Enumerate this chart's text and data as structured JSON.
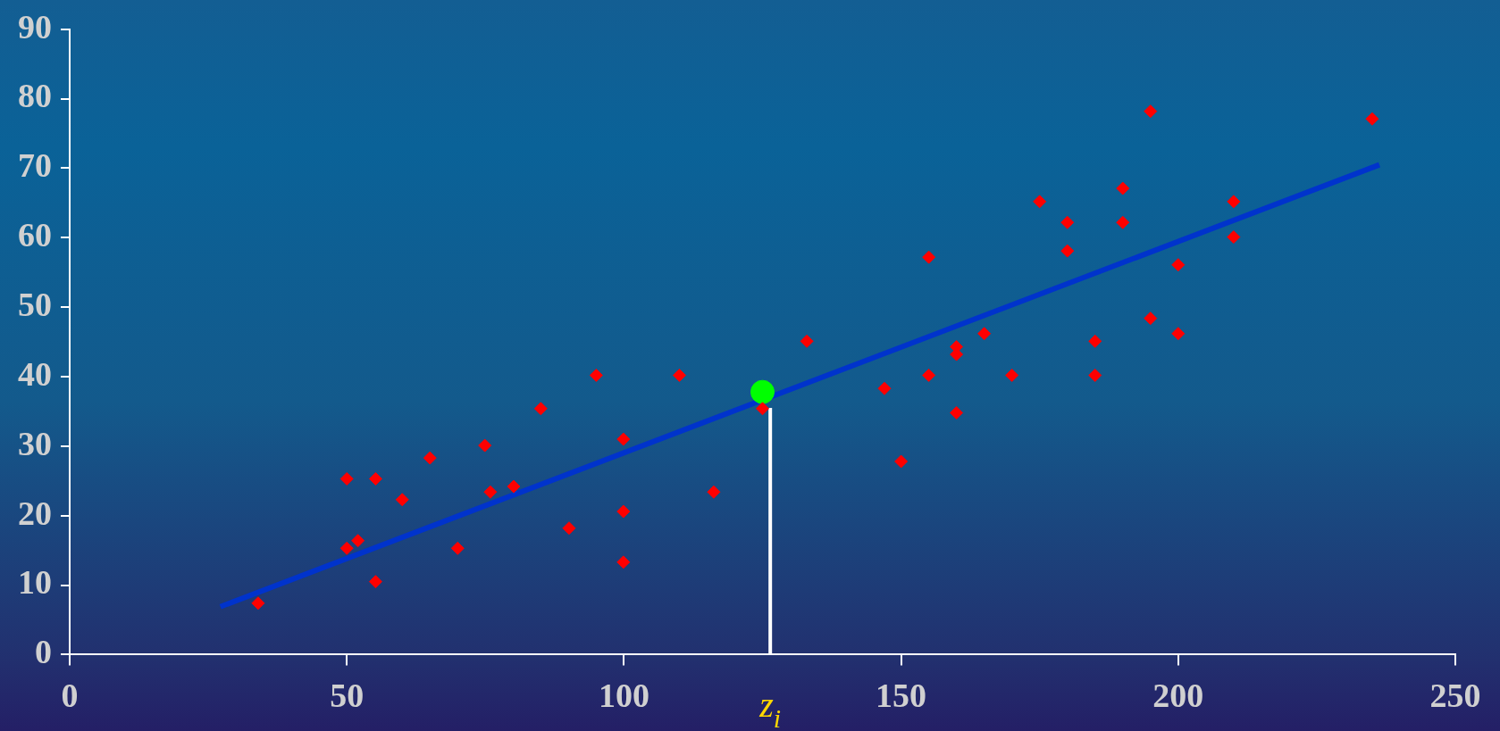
{
  "chart_data": {
    "type": "scatter",
    "xlim": [
      0,
      250
    ],
    "xticks": [
      0,
      50,
      100,
      150,
      200,
      250
    ],
    "ylim": [
      0,
      90
    ],
    "yticks": [
      0,
      10,
      20,
      30,
      40,
      50,
      60,
      70,
      80,
      90
    ],
    "grid": false,
    "legend": false,
    "series": [
      {
        "type": "scatter",
        "marker": "diamond",
        "color": "#ff0000",
        "x": [
          34,
          50,
          50,
          52,
          55.2,
          55.2,
          60,
          65,
          70,
          74.9,
          75.9,
          80.1,
          85,
          90.1,
          95,
          99.9,
          99.9,
          99.9,
          110,
          116.2,
          125,
          133,
          147,
          150,
          155,
          155,
          160,
          160,
          160,
          165,
          170,
          175,
          180,
          180,
          185,
          185,
          190,
          190,
          195,
          195,
          200,
          200,
          210,
          210,
          235
        ],
        "values": [
          7.4,
          25.3,
          15.3,
          16.4,
          25.3,
          10.5,
          22.3,
          28.3,
          15.3,
          30.1,
          23.4,
          24.2,
          35.4,
          18.2,
          40.2,
          31,
          20.6,
          13.3,
          40.2,
          23.4,
          35.4,
          45.1,
          38.3,
          27.8,
          57.2,
          40.2,
          44.3,
          43.2,
          34.8,
          46.2,
          40.2,
          65.2,
          62.2,
          58.1,
          45.1,
          40.2,
          67.1,
          62.2,
          78.2,
          48.4,
          56.1,
          46.2,
          65.2,
          60.1,
          77.1
        ]
      },
      {
        "type": "line",
        "marker": "none",
        "color": "#0033cc",
        "x": [
          27.2,
          236.3
        ],
        "values": [
          6.9,
          70.5
        ]
      },
      {
        "type": "line",
        "marker": "none",
        "color": "#ffffff",
        "x": [
          126.4,
          126.4
        ],
        "values": [
          0,
          35.5
        ]
      },
      {
        "type": "scatter",
        "marker": "circle",
        "color": "#00ff00",
        "x": [
          125
        ],
        "values": [
          37.8
        ]
      }
    ],
    "annotations": [
      {
        "text": "z$_{i}$",
        "x": 126.4,
        "y": 0
      }
    ]
  }
}
